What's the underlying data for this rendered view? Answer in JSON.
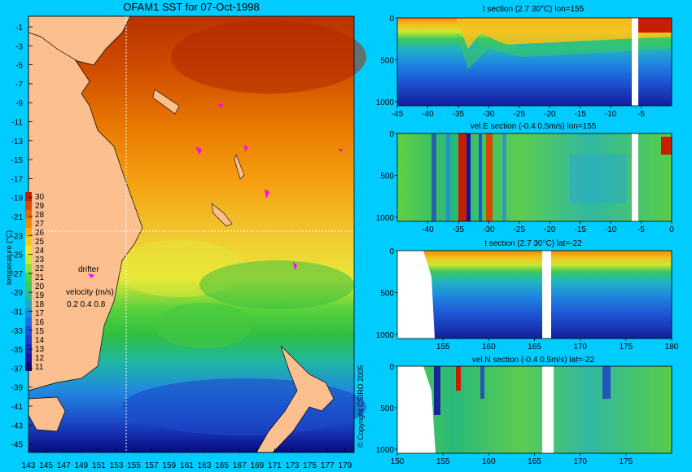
{
  "map": {
    "title": "OFAM1 SST for 07-Oct-1998",
    "lat_ticks": [
      "-1",
      "-3",
      "-5",
      "-7",
      "-9",
      "-11",
      "-13",
      "-15",
      "-17",
      "-19",
      "-21",
      "-23",
      "-25",
      "-27",
      "-29",
      "-31",
      "-33",
      "-35",
      "-37",
      "-39",
      "-41",
      "-43",
      "-45"
    ],
    "lon_ticks": [
      "143",
      "145",
      "147",
      "149",
      "151",
      "153",
      "155",
      "157",
      "159",
      "161",
      "163",
      "165",
      "167",
      "169",
      "171",
      "173",
      "175",
      "177",
      "179"
    ],
    "colorbar_values": [
      "30",
      "29",
      "28",
      "27",
      "26",
      "25",
      "24",
      "23",
      "22",
      "21",
      "20",
      "19",
      "18",
      "17",
      "16",
      "15",
      "14",
      "13",
      "12",
      "11"
    ],
    "colorbar_colors": [
      "#c81e00",
      "#d84a00",
      "#e86a00",
      "#f08a00",
      "#f5aa10",
      "#f5c81e",
      "#f0e030",
      "#c8e832",
      "#8ce03c",
      "#50d23c",
      "#3cc85a",
      "#2cbc90",
      "#24a8c0",
      "#1e8cd8",
      "#1e6ee0",
      "#2050d8",
      "#1e3cc8",
      "#1e28b4",
      "#1414a0",
      "#0a0a78"
    ],
    "colorbar_label": "temperature (°C)",
    "drifter_label": "drifter",
    "velocity_label": "velocity (m/s)",
    "velocity_scale": "0.2 0.4 0.8",
    "copyright": "© Copyright CSIRO 2005"
  },
  "sections": [
    {
      "title": "t section (2.7      30°C) lon=155",
      "y_ticks": [
        "0",
        "500",
        "1000"
      ],
      "x_ticks": [
        "-45",
        "-40",
        "-35",
        "-30",
        "-25",
        "-20",
        "-15",
        "-10",
        "-5"
      ]
    },
    {
      "title": "vel.E section (-0.4       0.5m/s) lon=155",
      "y_ticks": [
        "0",
        "500",
        "1000"
      ],
      "x_ticks": [
        "-40",
        "-35",
        "-30",
        "-25",
        "-20",
        "-15",
        "-10",
        "-5",
        "0"
      ]
    },
    {
      "title": "t section (2.7      30°C) lat=-22",
      "y_ticks": [
        "0",
        "500",
        "1000"
      ],
      "x_ticks": [
        "155",
        "160",
        "165",
        "170",
        "175",
        "180"
      ]
    },
    {
      "title": "vel.N section (-0.4       0.5m/s) lat=-22",
      "y_ticks": [
        "0",
        "500",
        "1000"
      ],
      "x_ticks": [
        "150",
        "155",
        "160",
        "165",
        "170",
        "175"
      ]
    }
  ],
  "chart_data": [
    {
      "type": "heatmap",
      "title": "OFAM1 SST for 07-Oct-1998",
      "xlabel": "",
      "ylabel": "",
      "xlim": [
        143,
        180
      ],
      "ylim": [
        -45,
        0
      ],
      "colorbar_range": [
        11,
        30
      ],
      "colorbar_label": "temperature (°C)",
      "marker_line_lon": 155,
      "marker_line_lat": -22
    },
    {
      "type": "heatmap",
      "title": "t section (2.7      30°C) lon=155",
      "xlim": [
        -45,
        0
      ],
      "ylim": [
        1050,
        0
      ],
      "colorbar_range": [
        2.7,
        30
      ]
    },
    {
      "type": "heatmap",
      "title": "vel.E section (-0.4       0.5m/s) lon=155",
      "xlim": [
        -45,
        0
      ],
      "ylim": [
        1050,
        0
      ],
      "colorbar_range": [
        -0.4,
        0.5
      ]
    },
    {
      "type": "heatmap",
      "title": "t section (2.7      30°C) lat=-22",
      "xlim": [
        150,
        180
      ],
      "ylim": [
        1050,
        0
      ],
      "colorbar_range": [
        2.7,
        30
      ]
    },
    {
      "type": "heatmap",
      "title": "vel.N section (-0.4       0.5m/s) lat=-22",
      "xlim": [
        150,
        180
      ],
      "ylim": [
        1050,
        0
      ],
      "colorbar_range": [
        -0.4,
        0.5
      ]
    }
  ]
}
